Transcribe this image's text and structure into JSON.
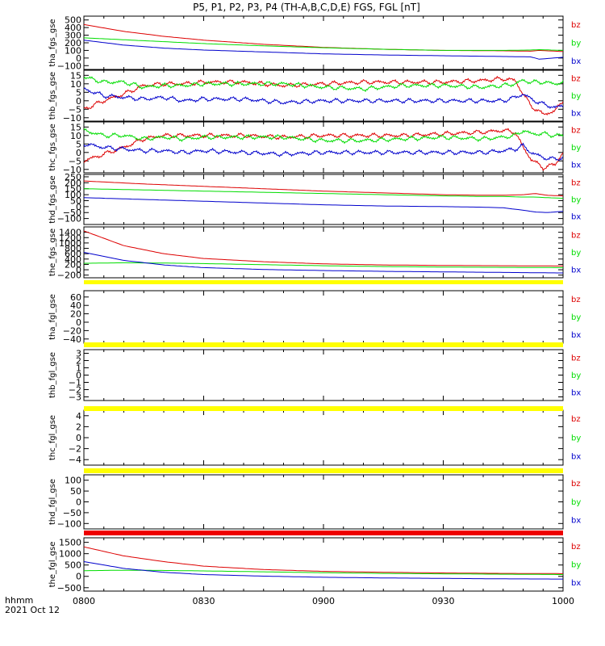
{
  "chart_data": {
    "type": "line",
    "title": "P5, P1, P2, P3, P4 (TH-A,B,C,D,E) FGS, FGL [nT]",
    "x_ticks": [
      "0800",
      "0830",
      "0900",
      "0930",
      "1000"
    ],
    "x_range": [
      "08:00",
      "10:00"
    ],
    "time_label": "hhmm",
    "date_label": "2021 Oct 12",
    "colors": {
      "bx": "#0000cc",
      "by": "#00dd00",
      "bz": "#dd0000",
      "flag_yellow": "#ffff00",
      "flag_red": "#ee0000"
    },
    "panels": [
      {
        "ylabel": "tha_fgs_gse",
        "ylim": [
          -150,
          550
        ],
        "yticks": [
          -100,
          0,
          100,
          200,
          300,
          400,
          500
        ],
        "legend": [
          "bz",
          "by",
          "bx"
        ],
        "x": [
          0,
          10,
          20,
          30,
          45,
          60,
          75,
          90,
          105,
          112,
          114,
          120
        ],
        "series": [
          {
            "name": "bz",
            "values": [
              440,
              350,
              285,
              235,
              180,
              140,
              115,
              100,
              95,
              90,
              100,
              85
            ]
          },
          {
            "name": "by",
            "values": [
              265,
              240,
              215,
              190,
              160,
              135,
              115,
              100,
              100,
              105,
              110,
              100
            ]
          },
          {
            "name": "bx",
            "values": [
              235,
              170,
              130,
              105,
              80,
              55,
              40,
              30,
              20,
              15,
              -15,
              10
            ]
          }
        ]
      },
      {
        "ylabel": "thb_fgs_gse",
        "ylim": [
          -12,
          18
        ],
        "yticks": [
          -10,
          -5,
          0,
          5,
          10,
          15
        ],
        "legend": [
          "bz",
          "by",
          "bx"
        ],
        "x": [
          0,
          5,
          10,
          15,
          20,
          25,
          30,
          40,
          50,
          60,
          70,
          80,
          90,
          100,
          105,
          108,
          110,
          112,
          115,
          118,
          120
        ],
        "series": [
          {
            "name": "bz",
            "values": [
              -5,
              0,
              4,
              9,
              10,
              10,
              11,
              11,
              9,
              10,
              11,
              11,
              11,
              12,
              13,
              12,
              4,
              -3,
              -8,
              -6,
              0
            ]
          },
          {
            "name": "by",
            "values": [
              14,
              11,
              11,
              8,
              9,
              9,
              10,
              10,
              10,
              8,
              7,
              9,
              9,
              8,
              9,
              10,
              12,
              11,
              11,
              10,
              11
            ]
          },
          {
            "name": "bx",
            "values": [
              7,
              3,
              2,
              1,
              2,
              0,
              1,
              1,
              -1,
              0,
              0,
              0,
              0,
              0,
              0,
              2,
              4,
              1,
              -2,
              -4,
              -3
            ]
          }
        ]
      },
      {
        "ylabel": "thc_fgs_gse",
        "ylim": [
          -12,
          18
        ],
        "yticks": [
          -10,
          -5,
          0,
          5,
          10,
          15
        ],
        "legend": [
          "bz",
          "by",
          "bx"
        ],
        "x": [
          0,
          5,
          10,
          15,
          20,
          25,
          30,
          40,
          50,
          60,
          70,
          80,
          90,
          100,
          105,
          108,
          110,
          112,
          115,
          118,
          120
        ],
        "series": [
          {
            "name": "bz",
            "values": [
              -5,
              -1,
              3,
              8,
              10,
              10,
              10,
              10,
              9,
              10,
              10,
              10,
              11,
              12,
              13,
              12,
              3,
              -4,
              -9,
              -7,
              0
            ]
          },
          {
            "name": "by",
            "values": [
              13,
              10,
              10,
              8,
              9,
              8,
              9,
              9,
              9,
              7,
              7,
              8,
              9,
              8,
              9,
              10,
              13,
              11,
              11,
              10,
              10
            ]
          },
          {
            "name": "bx",
            "values": [
              5,
              3,
              2,
              1,
              1,
              0,
              1,
              0,
              -1,
              0,
              0,
              0,
              0,
              0,
              1,
              2,
              4,
              0,
              -3,
              -4,
              -3
            ]
          }
        ]
      },
      {
        "ylabel": "thd_fgs_gse",
        "ylim": [
          -150,
          270
        ],
        "yticks": [
          -100,
          -50,
          0,
          50,
          100,
          150,
          200,
          250
        ],
        "legend": [
          "bz",
          "by",
          "bx"
        ],
        "x": [
          0,
          15,
          30,
          45,
          60,
          75,
          90,
          100,
          105,
          110,
          113,
          116,
          120
        ],
        "series": [
          {
            "name": "bz",
            "values": [
              215,
              190,
              170,
              150,
              130,
              115,
              100,
              95,
              95,
              100,
              110,
              95,
              90
            ]
          },
          {
            "name": "by",
            "values": [
              150,
              140,
              130,
              120,
              110,
              100,
              90,
              85,
              85,
              80,
              80,
              75,
              70
            ]
          },
          {
            "name": "bx",
            "values": [
              75,
              60,
              45,
              30,
              15,
              5,
              0,
              -5,
              -10,
              -30,
              -45,
              -50,
              -40
            ]
          }
        ]
      },
      {
        "ylabel": "the_fgs_gse",
        "ylim": [
          -300,
          1600
        ],
        "yticks": [
          -200,
          0,
          200,
          400,
          600,
          800,
          1000,
          1200,
          1400
        ],
        "legend": [
          "bz",
          "by",
          "bx"
        ],
        "x": [
          0,
          10,
          20,
          30,
          45,
          60,
          75,
          90,
          105,
          120
        ],
        "series": [
          {
            "name": "bz",
            "values": [
              1450,
              900,
              600,
              420,
              300,
              220,
              180,
              160,
              150,
              140
            ]
          },
          {
            "name": "by",
            "values": [
              240,
              260,
              250,
              230,
              190,
              150,
              120,
              100,
              90,
              80
            ]
          },
          {
            "name": "bx",
            "values": [
              650,
              350,
              180,
              80,
              10,
              -30,
              -60,
              -80,
              -100,
              -120
            ]
          }
        ]
      },
      {
        "ylabel": "tha_fgl_gse",
        "ylim": [
          -50,
          75
        ],
        "yticks": [
          -40,
          -20,
          0,
          20,
          40,
          60
        ],
        "legend": [
          "bz",
          "by",
          "bx"
        ],
        "flag": "yellow",
        "x": [],
        "series": []
      },
      {
        "ylabel": "thb_fgl_gse",
        "ylim": [
          -3.5,
          3.5
        ],
        "yticks": [
          -3,
          -2,
          -1,
          0,
          1,
          2,
          3
        ],
        "legend": [
          "bz",
          "by",
          "bx"
        ],
        "flag": "yellow",
        "x": [],
        "series": []
      },
      {
        "ylabel": "thc_fgl_gse",
        "ylim": [
          -5,
          5
        ],
        "yticks": [
          -4,
          -2,
          0,
          2,
          4
        ],
        "legend": [
          "bz",
          "by",
          "bx"
        ],
        "flag": "yellow",
        "x": [],
        "series": []
      },
      {
        "ylabel": "thd_fgl_gse",
        "ylim": [
          -125,
          125
        ],
        "yticks": [
          -100,
          -50,
          0,
          50,
          100
        ],
        "legend": [
          "bz",
          "by",
          "bx"
        ],
        "flag": "yellow",
        "x": [],
        "series": []
      },
      {
        "ylabel": "the_fgl_gse",
        "ylim": [
          -650,
          1700
        ],
        "yticks": [
          -500,
          0,
          500,
          1000,
          1500
        ],
        "legend": [
          "bz",
          "by",
          "bx"
        ],
        "flag": "red",
        "x": [
          0,
          10,
          20,
          30,
          45,
          60,
          75,
          90,
          105,
          120
        ],
        "series": [
          {
            "name": "bz",
            "values": [
              1300,
              900,
              650,
              450,
              300,
              220,
              180,
              150,
              130,
              120
            ]
          },
          {
            "name": "by",
            "values": [
              250,
              270,
              260,
              240,
              200,
              160,
              130,
              110,
              95,
              80
            ]
          },
          {
            "name": "bx",
            "values": [
              650,
              350,
              180,
              80,
              10,
              -40,
              -70,
              -90,
              -110,
              -120
            ]
          }
        ]
      }
    ]
  }
}
